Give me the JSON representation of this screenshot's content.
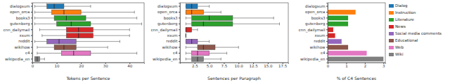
{
  "chart_data": [
    {
      "type": "box",
      "x_label": "Tokens per Sentence",
      "categories": [
        "dialogsum",
        "open_orca",
        "books3",
        "gutenberg",
        "cnn_dailymail",
        "xsum",
        "reddit",
        "wikihow",
        "c4",
        "wikipedia_en"
      ],
      "values": [
        [
          1,
          6,
          9,
          13,
          24
        ],
        [
          1,
          8,
          13,
          20,
          42
        ],
        [
          1,
          9,
          14,
          22,
          43
        ],
        [
          1,
          10,
          16,
          24,
          45
        ],
        [
          3,
          14,
          19,
          25,
          40
        ],
        [
          4,
          14,
          19,
          25,
          40
        ],
        [
          1,
          6,
          11,
          18,
          36
        ],
        [
          2,
          9,
          13,
          18,
          31
        ],
        [
          2,
          12,
          17,
          24,
          43
        ],
        [
          1,
          1,
          2,
          3,
          5
        ]
      ],
      "colors": [
        "#1f77b4",
        "#ff7f0e",
        "#2ca02c",
        "#2ca02c",
        "#d62728",
        "#d62728",
        "#9467bd",
        "#8c564b",
        "#e377c2",
        "#7f7f7f"
      ],
      "xlim": [
        0,
        46
      ],
      "xticks": [
        0,
        10,
        20,
        30,
        40
      ]
    },
    {
      "type": "box",
      "x_label": "Sentences per Paragraph",
      "categories": [
        "dialogsum",
        "open_orca",
        "books3",
        "gutenberg",
        "cnn_dailymail",
        "xsum",
        "reddit",
        "wikihow",
        "c4",
        "wikipedia_en"
      ],
      "values": [
        [
          1,
          1,
          2,
          3,
          5
        ],
        [
          1,
          1,
          2,
          4,
          7
        ],
        [
          1,
          2,
          5,
          9,
          16
        ],
        [
          1,
          2,
          4,
          9,
          17
        ],
        [
          1,
          1,
          1,
          2,
          3
        ],
        [
          1,
          1,
          1,
          1,
          1
        ],
        [
          1,
          1,
          2,
          3,
          5
        ],
        [
          1,
          3,
          4,
          6,
          10
        ],
        [
          1,
          2,
          3,
          5,
          8
        ],
        [
          1,
          2,
          3,
          4,
          7
        ]
      ],
      "colors": [
        "#1f77b4",
        "#ff7f0e",
        "#2ca02c",
        "#2ca02c",
        "#d62728",
        "#d62728",
        "#9467bd",
        "#8c564b",
        "#e377c2",
        "#7f7f7f"
      ],
      "xlim": [
        0,
        18.5
      ],
      "xticks": [
        2.5,
        {
          "value": 5,
          "label": "5.0"
        },
        7.5,
        {
          "value": 10,
          "label": "10.0"
        },
        12.5,
        {
          "value": 15,
          "label": "15.0"
        },
        17.5
      ]
    },
    {
      "type": "bar",
      "orientation": "horizontal",
      "x_label": "% of C4 Sentences",
      "legend": "right",
      "categories": [
        "dialogsum",
        "open_orca",
        "books3",
        "gutenberg",
        "cnn_dailymail",
        "xsum",
        "reddit",
        "wikihow",
        "c4",
        "wikipedia_en"
      ],
      "series": [
        {
          "name": "Dialog",
          "color": "#1f77b4",
          "values": [
            0.02,
            null,
            null,
            null,
            null,
            null,
            null,
            null,
            null,
            null
          ]
        },
        {
          "name": "Instruction",
          "color": "#ff7f0e",
          "values": [
            null,
            1.5,
            null,
            null,
            null,
            null,
            null,
            null,
            null,
            null
          ]
        },
        {
          "name": "Literature",
          "color": "#2ca02c",
          "values": [
            null,
            null,
            1.1,
            1.1,
            null,
            null,
            null,
            null,
            null,
            null
          ]
        },
        {
          "name": "News",
          "color": "#d62728",
          "values": [
            null,
            null,
            null,
            null,
            0.3,
            0.4,
            null,
            null,
            null,
            null
          ]
        },
        {
          "name": "Social media comments",
          "color": "#9467bd",
          "values": [
            null,
            null,
            null,
            null,
            null,
            null,
            0.75,
            null,
            null,
            null
          ]
        },
        {
          "name": "Educational",
          "color": "#8c564b",
          "values": [
            null,
            null,
            null,
            null,
            null,
            null,
            null,
            1.1,
            null,
            null
          ]
        },
        {
          "name": "Web",
          "color": "#e377c2",
          "values": [
            null,
            null,
            null,
            null,
            null,
            null,
            null,
            null,
            2.1,
            null
          ]
        },
        {
          "name": "Wiki",
          "color": "#7f7f7f",
          "values": [
            null,
            null,
            null,
            null,
            null,
            null,
            null,
            null,
            null,
            3.0
          ]
        }
      ],
      "xlim": [
        0,
        3.1
      ],
      "xticks": [
        0,
        1,
        2,
        3
      ]
    }
  ]
}
